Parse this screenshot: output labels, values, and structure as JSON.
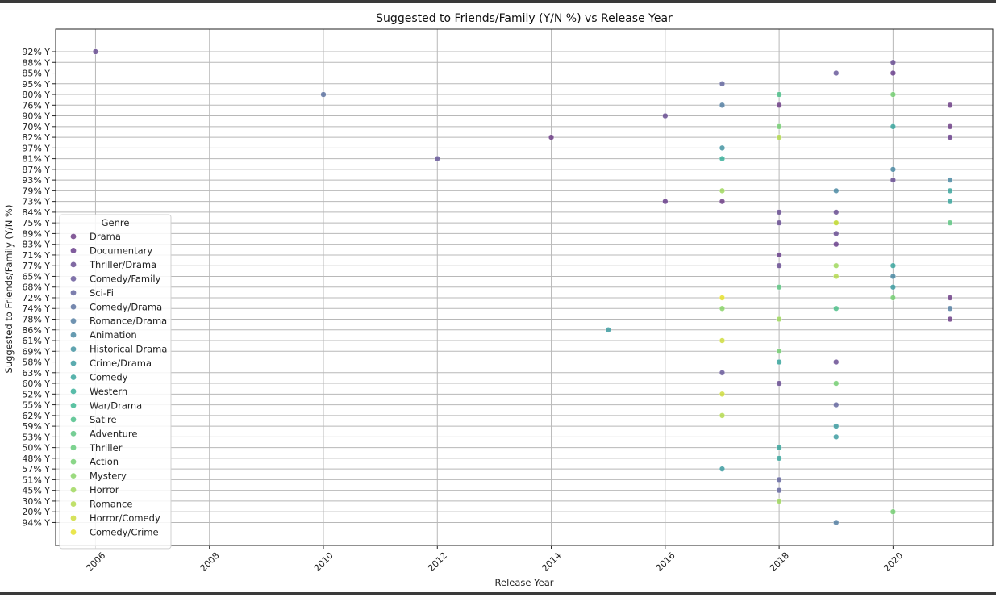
{
  "chart_data": {
    "type": "scatter",
    "title": "Suggested to Friends/Family (Y/N %) vs Release Year",
    "xlabel": "Release Year",
    "ylabel": "Suggested to Friends/Family (Y/N %)",
    "xlim": [
      2005.3,
      2021.75
    ],
    "x_ticks": [
      2006,
      2008,
      2010,
      2012,
      2014,
      2016,
      2018,
      2020
    ],
    "y_categories": [
      "92% Y",
      "88% Y",
      "85% Y",
      "95% Y",
      "80% Y",
      "76% Y",
      "90% Y",
      "70% Y",
      "82% Y",
      "97% Y",
      "81% Y",
      "87% Y",
      "93% Y",
      "79% Y",
      "73% Y",
      "84% Y",
      "75% Y",
      "89% Y",
      "83% Y",
      "71% Y",
      "77% Y",
      "65% Y",
      "68% Y",
      "72% Y",
      "74% Y",
      "78% Y",
      "86% Y",
      "61% Y",
      "69% Y",
      "58% Y",
      "63% Y",
      "60% Y",
      "52% Y",
      "55% Y",
      "62% Y",
      "59% Y",
      "53% Y",
      "50% Y",
      "48% Y",
      "57% Y",
      "51% Y",
      "45% Y",
      "30% Y",
      "20% Y",
      "94% Y"
    ],
    "grid": true,
    "legend": {
      "title": "Genre",
      "placement": "lower-left",
      "entries": [
        {
          "name": "Drama",
          "color": "#6f3f87"
        },
        {
          "name": "Documentary",
          "color": "#6a3f8c"
        },
        {
          "name": "Thriller/Drama",
          "color": "#6a4f93"
        },
        {
          "name": "Comedy/Family",
          "color": "#6a5b9b"
        },
        {
          "name": "Sci-Fi",
          "color": "#6668a0"
        },
        {
          "name": "Comedy/Drama",
          "color": "#5e73a1"
        },
        {
          "name": "Romance/Drama",
          "color": "#5680a3"
        },
        {
          "name": "Animation",
          "color": "#4b8aa3"
        },
        {
          "name": "Historical Drama",
          "color": "#4494a2"
        },
        {
          "name": "Crime/Drama",
          "color": "#3e9ca1"
        },
        {
          "name": "Comedy",
          "color": "#3ba69e"
        },
        {
          "name": "Western",
          "color": "#3bb09a"
        },
        {
          "name": "War/Drama",
          "color": "#40b893"
        },
        {
          "name": "Satire",
          "color": "#4ec08a"
        },
        {
          "name": "Adventure",
          "color": "#5ec683"
        },
        {
          "name": "Thriller",
          "color": "#66cb7d"
        },
        {
          "name": "Action",
          "color": "#76cf73"
        },
        {
          "name": "Mystery",
          "color": "#8ad468"
        },
        {
          "name": "Horror",
          "color": "#a0d85e"
        },
        {
          "name": "Romance",
          "color": "#b5da50"
        },
        {
          "name": "Horror/Comedy",
          "color": "#cfdd3e"
        },
        {
          "name": "Comedy/Crime",
          "color": "#e6e22e"
        }
      ]
    },
    "points": [
      {
        "x": 2006,
        "y": "92% Y",
        "genre": "Thriller/Drama"
      },
      {
        "x": 2010,
        "y": "80% Y",
        "genre": "Comedy/Drama"
      },
      {
        "x": 2012,
        "y": "81% Y",
        "genre": "Comedy/Family"
      },
      {
        "x": 2014,
        "y": "82% Y",
        "genre": "Drama"
      },
      {
        "x": 2015,
        "y": "86% Y",
        "genre": "Crime/Drama"
      },
      {
        "x": 2016,
        "y": "90% Y",
        "genre": "Thriller/Drama"
      },
      {
        "x": 2016,
        "y": "73% Y",
        "genre": "Documentary"
      },
      {
        "x": 2017,
        "y": "95% Y",
        "genre": "Sci-Fi"
      },
      {
        "x": 2017,
        "y": "76% Y",
        "genre": "Romance/Drama"
      },
      {
        "x": 2017,
        "y": "97% Y",
        "genre": "Historical Drama"
      },
      {
        "x": 2017,
        "y": "81% Y",
        "genre": "Western"
      },
      {
        "x": 2017,
        "y": "79% Y",
        "genre": "Horror"
      },
      {
        "x": 2017,
        "y": "73% Y",
        "genre": "Drama"
      },
      {
        "x": 2017,
        "y": "72% Y",
        "genre": "Comedy/Crime"
      },
      {
        "x": 2017,
        "y": "74% Y",
        "genre": "Mystery"
      },
      {
        "x": 2017,
        "y": "61% Y",
        "genre": "Horror/Comedy"
      },
      {
        "x": 2017,
        "y": "63% Y",
        "genre": "Comedy/Family"
      },
      {
        "x": 2017,
        "y": "52% Y",
        "genre": "Horror/Comedy"
      },
      {
        "x": 2017,
        "y": "62% Y",
        "genre": "Romance"
      },
      {
        "x": 2017,
        "y": "57% Y",
        "genre": "Crime/Drama"
      },
      {
        "x": 2018,
        "y": "80% Y",
        "genre": "Satire"
      },
      {
        "x": 2018,
        "y": "76% Y",
        "genre": "Drama"
      },
      {
        "x": 2018,
        "y": "70% Y",
        "genre": "Action"
      },
      {
        "x": 2018,
        "y": "82% Y",
        "genre": "Romance"
      },
      {
        "x": 2018,
        "y": "84% Y",
        "genre": "Thriller/Drama"
      },
      {
        "x": 2018,
        "y": "75% Y",
        "genre": "Thriller/Drama"
      },
      {
        "x": 2018,
        "y": "71% Y",
        "genre": "Documentary"
      },
      {
        "x": 2018,
        "y": "77% Y",
        "genre": "Thriller/Drama"
      },
      {
        "x": 2018,
        "y": "68% Y",
        "genre": "Adventure"
      },
      {
        "x": 2018,
        "y": "78% Y",
        "genre": "Horror"
      },
      {
        "x": 2018,
        "y": "69% Y",
        "genre": "Action"
      },
      {
        "x": 2018,
        "y": "58% Y",
        "genre": "Comedy"
      },
      {
        "x": 2018,
        "y": "60% Y",
        "genre": "Thriller/Drama"
      },
      {
        "x": 2018,
        "y": "50% Y",
        "genre": "Comedy"
      },
      {
        "x": 2018,
        "y": "48% Y",
        "genre": "Comedy"
      },
      {
        "x": 2018,
        "y": "51% Y",
        "genre": "Sci-Fi"
      },
      {
        "x": 2018,
        "y": "45% Y",
        "genre": "Sci-Fi"
      },
      {
        "x": 2018,
        "y": "30% Y",
        "genre": "Horror"
      },
      {
        "x": 2019,
        "y": "85% Y",
        "genre": "Comedy/Family"
      },
      {
        "x": 2019,
        "y": "79% Y",
        "genre": "Animation"
      },
      {
        "x": 2019,
        "y": "84% Y",
        "genre": "Thriller/Drama"
      },
      {
        "x": 2019,
        "y": "75% Y",
        "genre": "Mystery"
      },
      {
        "x": 2019,
        "y": "75% Y",
        "genre": "Horror/Comedy"
      },
      {
        "x": 2019,
        "y": "89% Y",
        "genre": "Thriller/Drama"
      },
      {
        "x": 2019,
        "y": "83% Y",
        "genre": "Documentary"
      },
      {
        "x": 2019,
        "y": "77% Y",
        "genre": "Horror"
      },
      {
        "x": 2019,
        "y": "65% Y",
        "genre": "Romance"
      },
      {
        "x": 2019,
        "y": "74% Y",
        "genre": "Satire"
      },
      {
        "x": 2019,
        "y": "58% Y",
        "genre": "Thriller/Drama"
      },
      {
        "x": 2019,
        "y": "60% Y",
        "genre": "Action"
      },
      {
        "x": 2019,
        "y": "55% Y",
        "genre": "Sci-Fi"
      },
      {
        "x": 2019,
        "y": "59% Y",
        "genre": "Crime/Drama"
      },
      {
        "x": 2019,
        "y": "53% Y",
        "genre": "Crime/Drama"
      },
      {
        "x": 2019,
        "y": "94% Y",
        "genre": "Romance/Drama"
      },
      {
        "x": 2020,
        "y": "88% Y",
        "genre": "Thriller/Drama"
      },
      {
        "x": 2020,
        "y": "85% Y",
        "genre": "Documentary"
      },
      {
        "x": 2020,
        "y": "80% Y",
        "genre": "Action"
      },
      {
        "x": 2020,
        "y": "70% Y",
        "genre": "Comedy"
      },
      {
        "x": 2020,
        "y": "87% Y",
        "genre": "Animation"
      },
      {
        "x": 2020,
        "y": "93% Y",
        "genre": "Thriller/Drama"
      },
      {
        "x": 2020,
        "y": "77% Y",
        "genre": "Comedy"
      },
      {
        "x": 2020,
        "y": "65% Y",
        "genre": "Animation"
      },
      {
        "x": 2020,
        "y": "68% Y",
        "genre": "Crime/Drama"
      },
      {
        "x": 2020,
        "y": "72% Y",
        "genre": "Action"
      },
      {
        "x": 2020,
        "y": "20% Y",
        "genre": "Action"
      },
      {
        "x": 2021,
        "y": "76% Y",
        "genre": "Drama"
      },
      {
        "x": 2021,
        "y": "70% Y",
        "genre": "Drama"
      },
      {
        "x": 2021,
        "y": "82% Y",
        "genre": "Documentary"
      },
      {
        "x": 2021,
        "y": "93% Y",
        "genre": "Animation"
      },
      {
        "x": 2021,
        "y": "79% Y",
        "genre": "Comedy"
      },
      {
        "x": 2021,
        "y": "73% Y",
        "genre": "Comedy"
      },
      {
        "x": 2021,
        "y": "75% Y",
        "genre": "Adventure"
      },
      {
        "x": 2021,
        "y": "72% Y",
        "genre": "Drama"
      },
      {
        "x": 2021,
        "y": "74% Y",
        "genre": "Romance/Drama"
      },
      {
        "x": 2021,
        "y": "78% Y",
        "genre": "Drama"
      }
    ]
  }
}
